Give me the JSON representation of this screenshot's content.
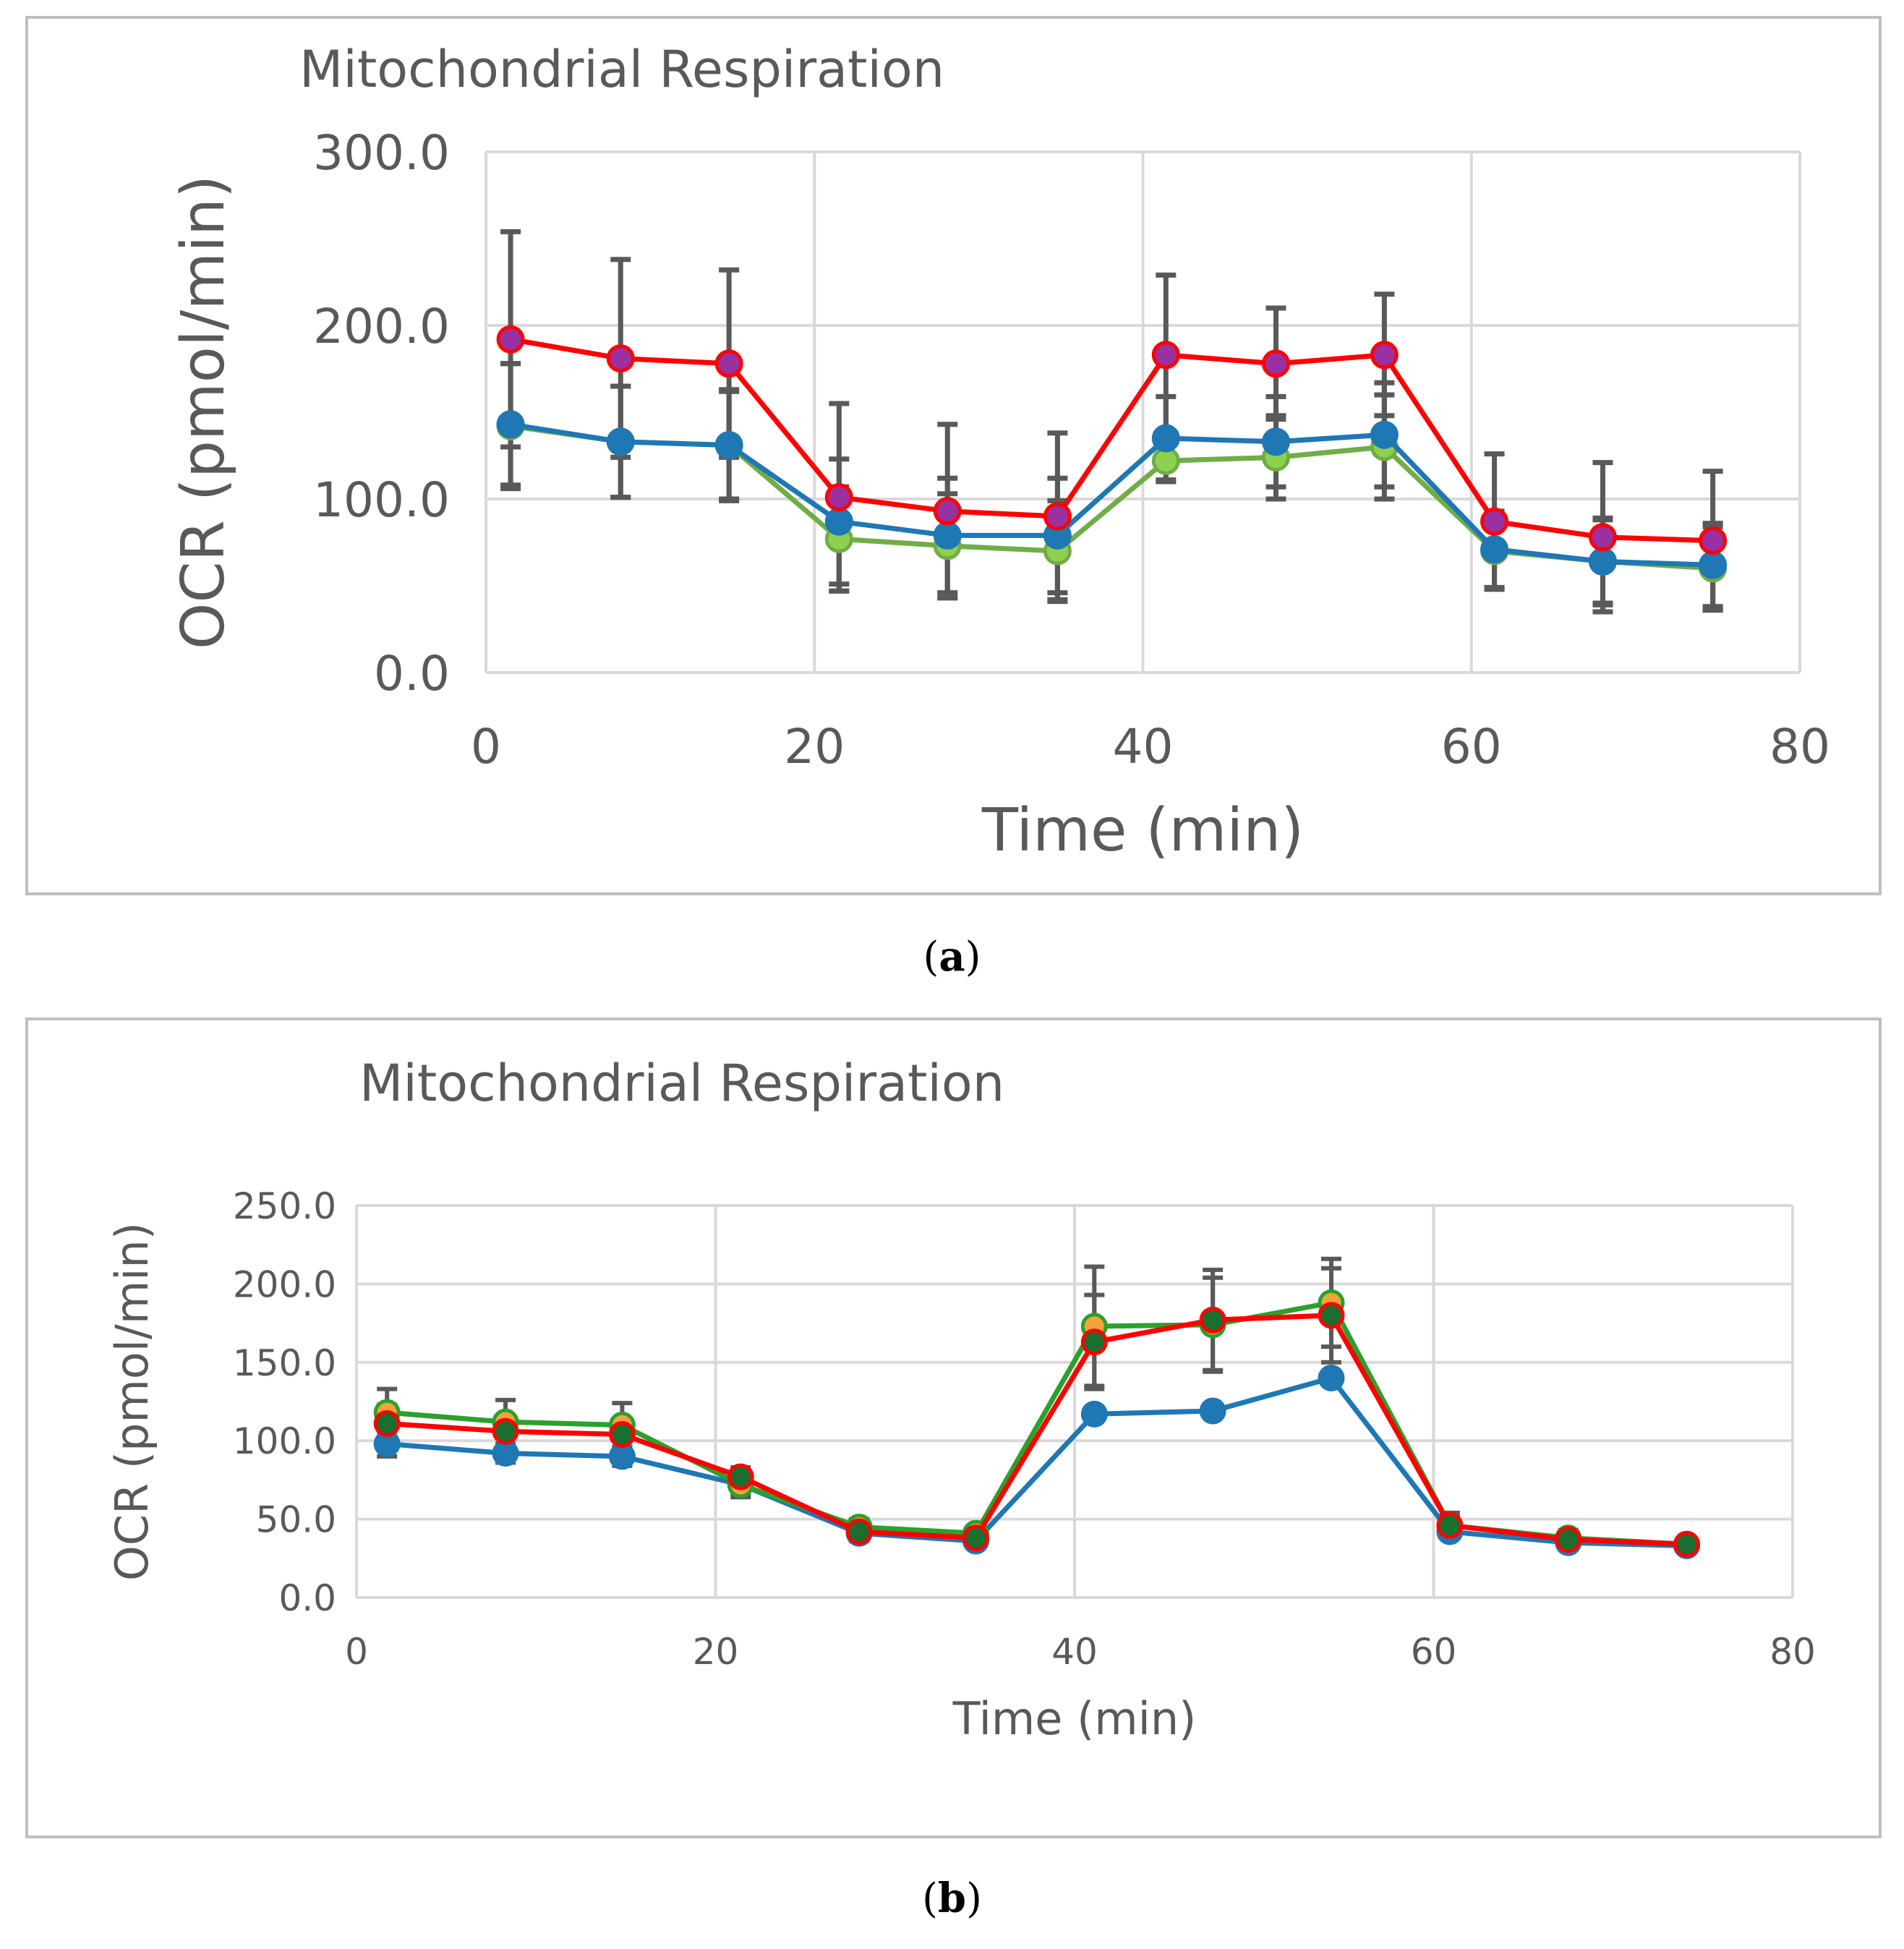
{
  "chart_data": [
    {
      "panel": "a",
      "type": "line",
      "title": "Mitochondrial Respiration",
      "xlabel": "Time (min)",
      "ylabel": "OCR (pmol/min)",
      "xlim": [
        0,
        80
      ],
      "ylim": [
        0,
        300
      ],
      "xticks": [
        "0",
        "20",
        "40",
        "60",
        "80"
      ],
      "yticks": [
        "0.0",
        "100.0",
        "200.0",
        "300.0"
      ],
      "xtick_values": [
        0,
        20,
        40,
        60,
        80
      ],
      "ytick_values": [
        0,
        100,
        200,
        300
      ],
      "x": [
        1.5,
        8.2,
        14.8,
        21.5,
        28.1,
        34.8,
        41.4,
        48.1,
        54.7,
        61.4,
        68.0,
        74.7
      ],
      "series": [
        {
          "name": "series-green",
          "color": "#70ad47",
          "marker_fill": "#8fd14f",
          "values": [
            142,
            133,
            131,
            77,
            73,
            70,
            122,
            124,
            130,
            70,
            64,
            60
          ],
          "error": [
            36,
            32,
            32,
            30,
            30,
            29,
            12,
            24,
            30,
            22,
            25,
            24
          ]
        },
        {
          "name": "series-blue",
          "color": "#1f77b4",
          "marker_fill": "#1f77b4",
          "values": [
            143,
            133,
            131,
            87,
            79,
            79,
            135,
            133,
            137,
            71,
            64,
            62
          ],
          "error": [
            35,
            32,
            31,
            36,
            33,
            33,
            24,
            26,
            30,
            22,
            24,
            24
          ]
        },
        {
          "name": "series-red",
          "color": "#ff0000",
          "marker_fill": "#9b30a0",
          "values": [
            192,
            181,
            178,
            101,
            93,
            90,
            183,
            178,
            183,
            87,
            78,
            76
          ],
          "error": [
            62,
            57,
            54,
            54,
            50,
            48,
            46,
            32,
            35,
            39,
            43,
            40
          ]
        }
      ]
    },
    {
      "panel": "b",
      "type": "line",
      "title": "Mitochondrial Respiration",
      "xlabel": "Time (min)",
      "ylabel": "OCR (pmol/min)",
      "xlim": [
        0,
        80
      ],
      "ylim": [
        0,
        250
      ],
      "xticks": [
        "0",
        "20",
        "40",
        "60",
        "80"
      ],
      "yticks": [
        "0.0",
        "50.0",
        "100.0",
        "150.0",
        "200.0",
        "250.0"
      ],
      "xtick_values": [
        0,
        20,
        40,
        60,
        80
      ],
      "ytick_values": [
        0,
        50,
        100,
        150,
        200,
        250
      ],
      "x": [
        1.7,
        8.3,
        14.8,
        21.4,
        28.0,
        34.5,
        41.1,
        47.7,
        54.3,
        60.9,
        67.5,
        74.1
      ],
      "series": [
        {
          "name": "series-blue",
          "color": "#1f77b4",
          "marker_fill": "#1f77b4",
          "values": [
            98,
            92,
            90,
            72,
            41,
            36,
            117,
            119,
            140,
            42,
            35,
            33
          ],
          "error": [
            8,
            6,
            6,
            6,
            5,
            4,
            4,
            4,
            4,
            4,
            4,
            3
          ]
        },
        {
          "name": "series-green",
          "color": "#2ca02c",
          "marker_fill": "#f4a23c",
          "values": [
            118,
            112,
            110,
            72,
            45,
            41,
            173,
            174,
            188,
            46,
            38,
            34
          ],
          "error": [
            15,
            14,
            14,
            8,
            5,
            4,
            38,
            30,
            28,
            8,
            5,
            4
          ]
        },
        {
          "name": "series-red",
          "color": "#ff0000",
          "marker_fill": "#1b6e2e",
          "values": [
            111,
            106,
            104,
            77,
            42,
            38,
            163,
            177,
            180,
            46,
            37,
            34
          ],
          "error": [
            12,
            10,
            10,
            6,
            4,
            4,
            30,
            32,
            30,
            6,
            4,
            3
          ]
        }
      ]
    }
  ],
  "captions": {
    "a": "a",
    "b": "b"
  }
}
